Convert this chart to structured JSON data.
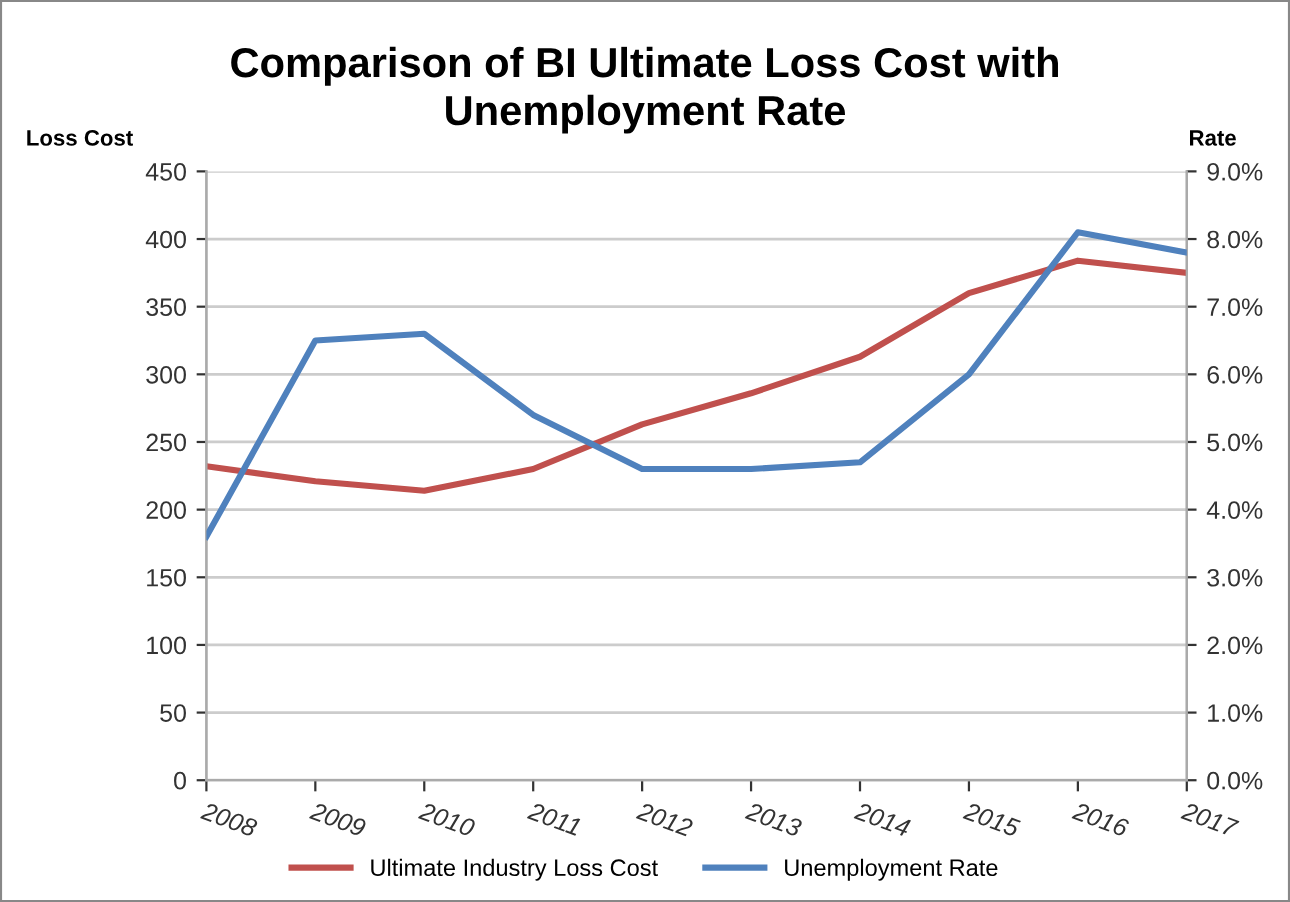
{
  "chart_data": {
    "type": "line",
    "title": "Comparison of BI Ultimate Loss Cost with\nUnemployment Rate",
    "ylabel": "Loss Cost",
    "y2label": "Rate",
    "categories": [
      "2008",
      "2009",
      "2010",
      "2011",
      "2012",
      "2013",
      "2014",
      "2015",
      "2016",
      "2017"
    ],
    "series": [
      {
        "name": "Ultimate Industry Loss Cost",
        "color": "#c0504d",
        "values": [
          232,
          221,
          214,
          230,
          263,
          286,
          313,
          360,
          384,
          375
        ]
      },
      {
        "name": "Unemployment Rate",
        "color": "#4f81bd",
        "axis": "y2",
        "values": [
          3.6,
          6.5,
          6.6,
          5.4,
          4.6,
          4.6,
          4.7,
          6.0,
          8.1,
          7.8
        ]
      }
    ],
    "ylim": [
      0,
      450
    ],
    "yticks": [
      0,
      50,
      100,
      150,
      200,
      250,
      300,
      350,
      400,
      450
    ],
    "y2lim": [
      0,
      9
    ],
    "y2ticks": [
      {
        "value": 0,
        "label": "0.0%"
      },
      {
        "value": 1,
        "label": "1.0%"
      },
      {
        "value": 2,
        "label": "2.0%"
      },
      {
        "value": 3,
        "label": "3.0%"
      },
      {
        "value": 4,
        "label": "4.0%"
      },
      {
        "value": 5,
        "label": "5.0%"
      },
      {
        "value": 6,
        "label": "6.0%"
      },
      {
        "value": 7,
        "label": "7.0%"
      },
      {
        "value": 8,
        "label": "8.0%"
      },
      {
        "value": 9,
        "label": "9.0%"
      }
    ],
    "grid": "y",
    "legend": "bottom",
    "marker": "none",
    "line_style": "solid"
  }
}
